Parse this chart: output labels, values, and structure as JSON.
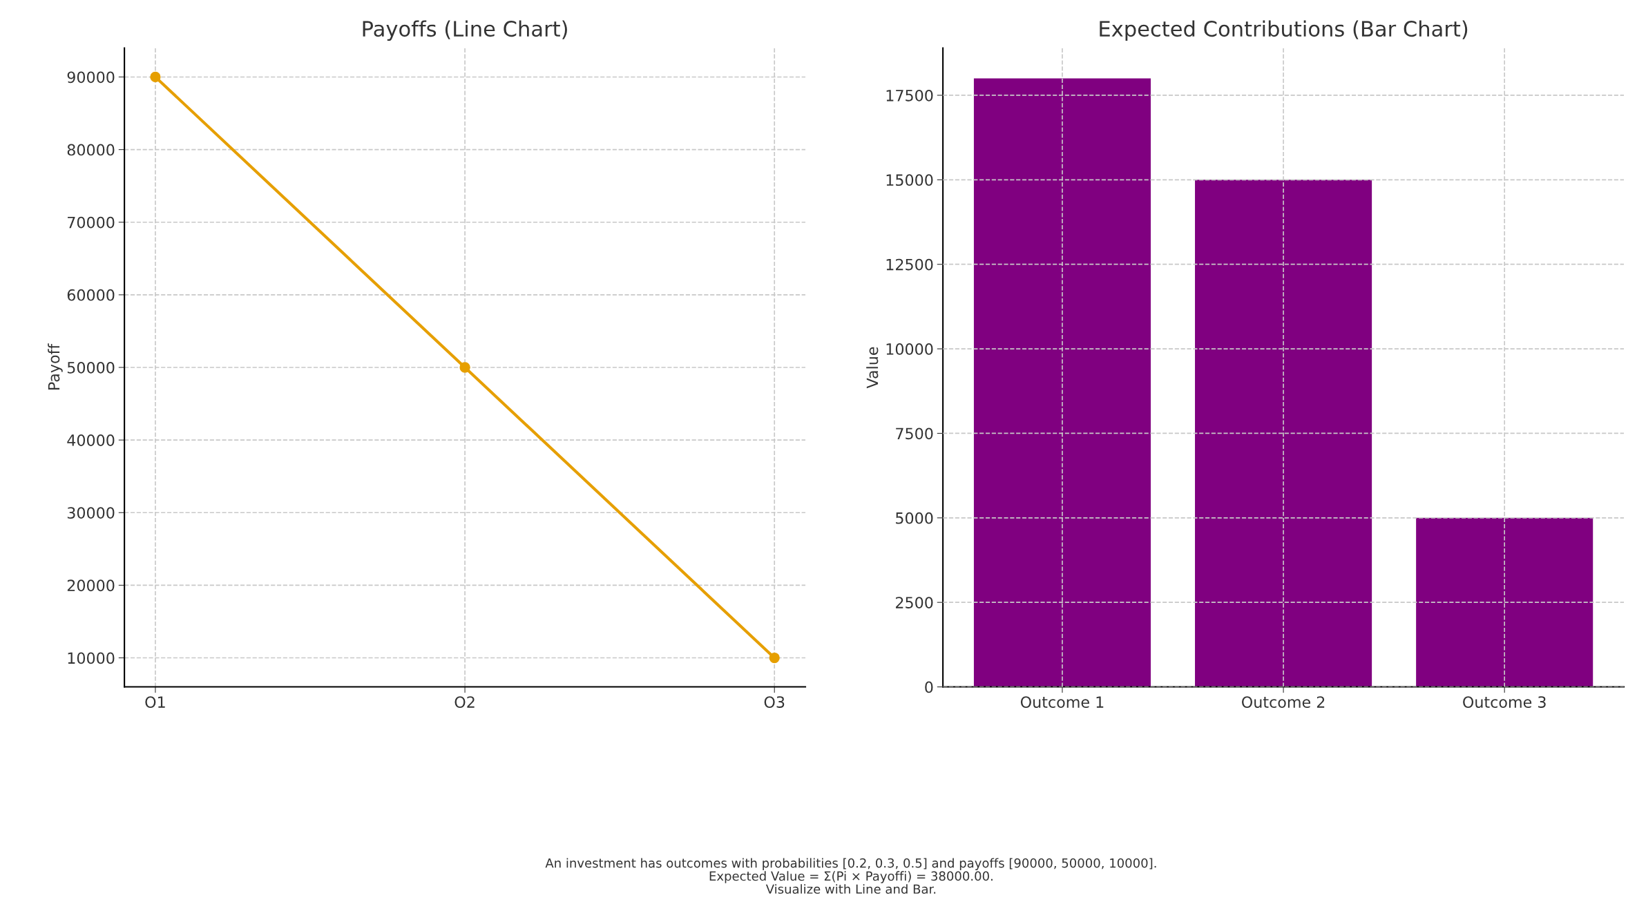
{
  "chart_data": [
    {
      "type": "line",
      "title": "Payoffs (Line Chart)",
      "ylabel": "Payoff",
      "categories": [
        "O1",
        "O2",
        "O3"
      ],
      "series": [
        {
          "color": "#e69f00",
          "values": [
            90000,
            50000,
            10000
          ]
        }
      ],
      "marker": "circle",
      "line_style": "solid",
      "ylim": [
        6000,
        94000
      ],
      "yticks": [
        10000,
        20000,
        30000,
        40000,
        50000,
        60000,
        70000,
        80000,
        90000
      ],
      "grid": true,
      "legend": false
    },
    {
      "type": "bar",
      "title": "Expected Contributions (Bar Chart)",
      "ylabel": "Value",
      "categories": [
        "Outcome 1",
        "Outcome 2",
        "Outcome 3"
      ],
      "series": [
        {
          "color": "#800080",
          "values": [
            18000,
            15000,
            5000
          ]
        }
      ],
      "ylim": [
        0,
        18900
      ],
      "yticks": [
        0,
        2500,
        5000,
        7500,
        10000,
        12500,
        15000,
        17500
      ],
      "grid": true,
      "legend": false,
      "annotations": [
        "An investment has outcomes with probabilities [0.2, 0.3, 0.5] and payoffs [90000, 50000, 10000].\nExpected Value = Σ(Pi × Payoffi) = 38000.00.\nVisualize with Line and Bar."
      ]
    }
  ]
}
